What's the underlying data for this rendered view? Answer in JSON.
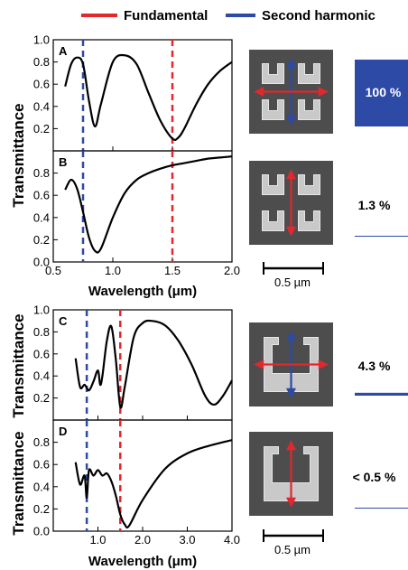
{
  "legend": {
    "fundamental_label": "Fundamental",
    "second_harmonic_label": "Second harmonic",
    "fundamental_color": "#e0282e",
    "second_harmonic_color": "#2c4aa6"
  },
  "colors": {
    "curve": "#000000",
    "bar": "#2c4aa6"
  },
  "scale_bar": {
    "label": "0.5 µm"
  },
  "chart_data": [
    {
      "type": "line",
      "panel_label": "A",
      "xlim": [
        0.5,
        2.0
      ],
      "ylim": [
        0.0,
        1.0
      ],
      "ylabel": "Transmittance",
      "xlabel": "",
      "yticks": [
        0.2,
        0.4,
        0.6,
        0.8,
        1.0
      ],
      "ytick_labels": [
        "0.2",
        "0.4",
        "0.6",
        "0.8",
        "1.0"
      ],
      "xticks": [
        0.5,
        1.0,
        1.5,
        2.0
      ],
      "xtick_labels": [],
      "markers": {
        "second_harmonic": 0.75,
        "fundamental": 1.5
      },
      "series": [
        {
          "x": [
            0.6,
            0.65,
            0.7,
            0.75,
            0.8,
            0.85,
            0.9,
            1.0,
            1.1,
            1.2,
            1.3,
            1.4,
            1.5,
            1.55,
            1.6,
            1.7,
            1.8,
            1.9,
            2.0
          ],
          "y": [
            0.58,
            0.78,
            0.84,
            0.78,
            0.45,
            0.22,
            0.42,
            0.8,
            0.86,
            0.78,
            0.52,
            0.27,
            0.11,
            0.12,
            0.2,
            0.42,
            0.6,
            0.72,
            0.8
          ]
        }
      ]
    },
    {
      "type": "line",
      "panel_label": "B",
      "xlim": [
        0.5,
        2.0
      ],
      "ylim": [
        0.0,
        1.0
      ],
      "ylabel": "",
      "xlabel": "Wavelength (μm)",
      "yticks": [
        0.0,
        0.2,
        0.4,
        0.6,
        0.8
      ],
      "ytick_labels": [
        "0.0",
        "0.2",
        "0.4",
        "0.6",
        "0.8"
      ],
      "xticks": [
        0.5,
        1.0,
        1.5,
        2.0
      ],
      "xtick_labels": [
        "0.5",
        "1.0",
        "1.5",
        "2.0"
      ],
      "markers": {
        "second_harmonic": 0.75,
        "fundamental": 1.5
      },
      "series": [
        {
          "x": [
            0.6,
            0.65,
            0.7,
            0.75,
            0.8,
            0.85,
            0.9,
            1.0,
            1.1,
            1.2,
            1.3,
            1.4,
            1.5,
            1.6,
            1.7,
            1.8,
            1.9,
            2.0
          ],
          "y": [
            0.65,
            0.74,
            0.66,
            0.45,
            0.22,
            0.1,
            0.12,
            0.4,
            0.62,
            0.74,
            0.8,
            0.84,
            0.87,
            0.89,
            0.91,
            0.93,
            0.94,
            0.95
          ]
        }
      ]
    },
    {
      "type": "line",
      "panel_label": "C",
      "xlim": [
        0.0,
        4.0
      ],
      "ylim": [
        0.0,
        1.0
      ],
      "ylabel": "Transmittance",
      "xlabel": "",
      "yticks": [
        0.2,
        0.4,
        0.6,
        0.8,
        1.0
      ],
      "ytick_labels": [
        "0.2",
        "0.4",
        "0.6",
        "0.8",
        "1.0"
      ],
      "xticks": [
        0.0,
        1.0,
        2.0,
        3.0,
        4.0
      ],
      "xtick_labels": [],
      "markers": {
        "second_harmonic": 0.75,
        "fundamental": 1.5
      },
      "series": [
        {
          "x": [
            0.5,
            0.6,
            0.7,
            0.8,
            0.9,
            1.0,
            1.05,
            1.1,
            1.2,
            1.3,
            1.4,
            1.5,
            1.6,
            1.8,
            2.0,
            2.2,
            2.5,
            2.8,
            3.1,
            3.4,
            3.6,
            3.8,
            4.0
          ],
          "y": [
            0.56,
            0.3,
            0.32,
            0.27,
            0.35,
            0.45,
            0.32,
            0.4,
            0.72,
            0.85,
            0.55,
            0.12,
            0.3,
            0.75,
            0.88,
            0.9,
            0.86,
            0.72,
            0.5,
            0.22,
            0.14,
            0.22,
            0.36
          ]
        }
      ]
    },
    {
      "type": "line",
      "panel_label": "D",
      "xlim": [
        0.0,
        4.0
      ],
      "ylim": [
        0.0,
        1.0
      ],
      "ylabel": "Transmittance",
      "xlabel": "Wavelength (μm)",
      "yticks": [
        0.0,
        0.2,
        0.4,
        0.6,
        0.8
      ],
      "ytick_labels": [
        "0.0",
        "0.2",
        "0.4",
        "0.6",
        "0.8"
      ],
      "xticks": [
        0.0,
        1.0,
        2.0,
        3.0,
        4.0
      ],
      "xtick_labels": [
        "",
        "1.0",
        "2.0",
        "3.0",
        "4.0"
      ],
      "markers": {
        "second_harmonic": 0.75,
        "fundamental": 1.5
      },
      "series": [
        {
          "x": [
            0.5,
            0.6,
            0.7,
            0.75,
            0.8,
            0.9,
            1.0,
            1.1,
            1.2,
            1.3,
            1.4,
            1.5,
            1.6,
            1.7,
            2.0,
            2.5,
            3.0,
            3.5,
            4.0
          ],
          "y": [
            0.62,
            0.42,
            0.5,
            0.3,
            0.55,
            0.5,
            0.55,
            0.5,
            0.52,
            0.45,
            0.32,
            0.15,
            0.06,
            0.05,
            0.28,
            0.56,
            0.7,
            0.77,
            0.82
          ]
        }
      ]
    }
  ],
  "rows": [
    {
      "percentage": "100 %",
      "bar_fraction": 1.0,
      "arrows": [
        "fundamental",
        "second_harmonic"
      ],
      "structure": "split"
    },
    {
      "percentage": "1.3 %",
      "bar_fraction": 0.013,
      "arrows": [
        "fundamental"
      ],
      "structure": "split"
    },
    {
      "percentage": "4.3 %",
      "bar_fraction": 0.043,
      "arrows": [
        "fundamental",
        "second_harmonic"
      ],
      "structure": "solid"
    },
    {
      "percentage": "< 0.5 %",
      "bar_fraction": 0.005,
      "arrows": [
        "fundamental"
      ],
      "structure": "solid"
    }
  ]
}
